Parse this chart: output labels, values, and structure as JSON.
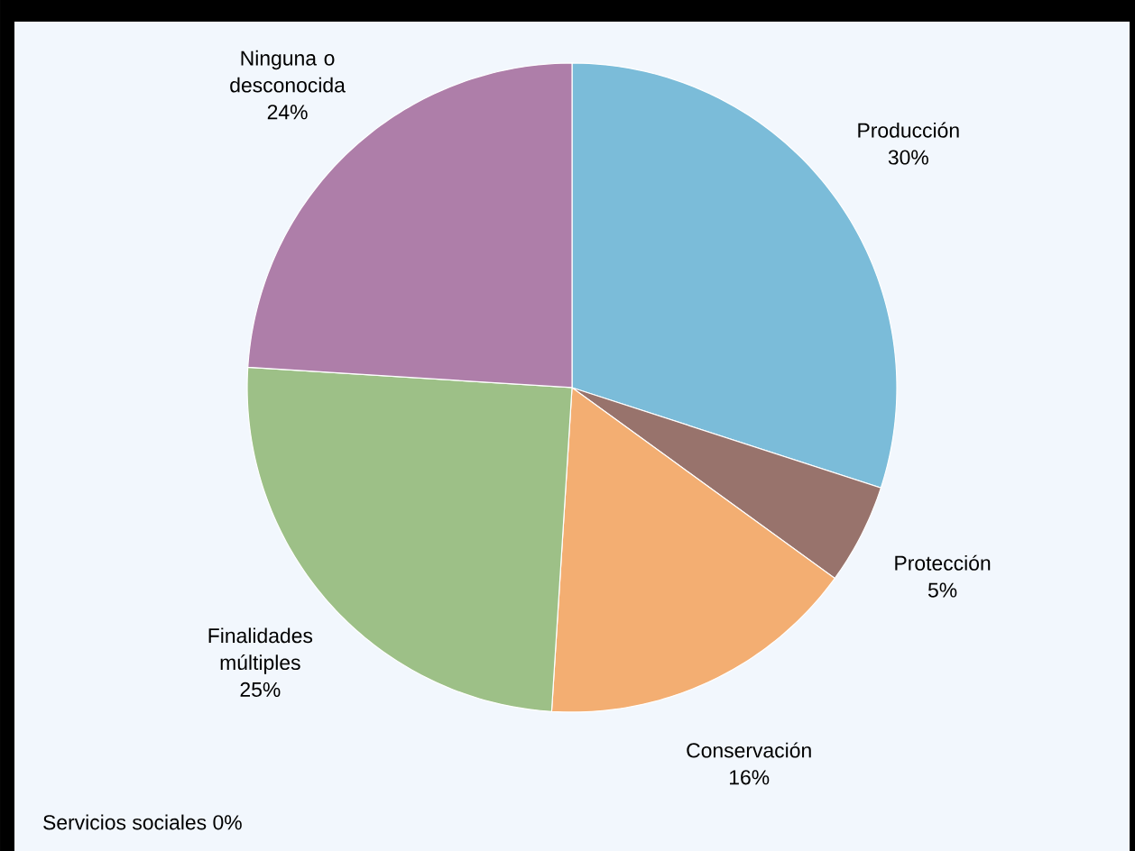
{
  "chart_data": {
    "type": "pie",
    "categories": [
      "Producción",
      "Protección",
      "Conservación",
      "Finalidades múltiples",
      "Ninguna o desconocida",
      "Servicios sociales"
    ],
    "values": [
      30,
      5,
      16,
      25,
      24,
      0
    ],
    "value_labels": [
      "30%",
      "5%",
      "16%",
      "25%",
      "24%",
      "0%"
    ],
    "colors": [
      "#7bbcd9",
      "#98736c",
      "#f3ae72",
      "#9dc087",
      "#ae7ea9",
      "#c8c8c8"
    ]
  }
}
